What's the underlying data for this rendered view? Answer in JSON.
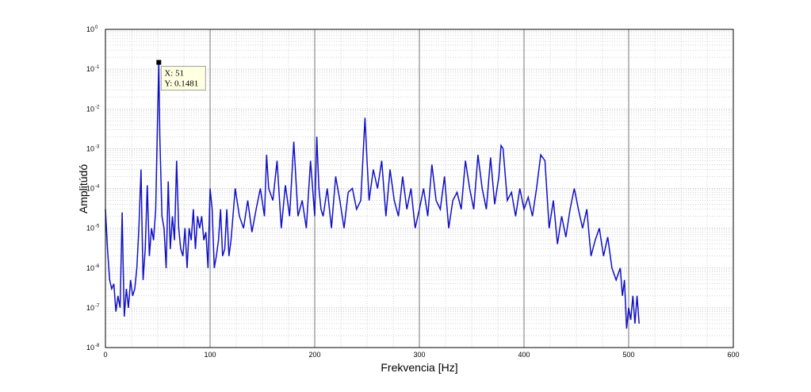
{
  "chart_data": {
    "type": "line",
    "xlabel": "Frekvencia [Hz]",
    "ylabel": "Amplitúdó",
    "xlim": [
      0,
      600
    ],
    "ylim": [
      1e-08,
      1
    ],
    "yscale": "log",
    "grid": "major and minor",
    "x_ticks": [
      "0",
      "100",
      "200",
      "300",
      "400",
      "500",
      "600"
    ],
    "y_ticks": [
      {
        "base": "10",
        "exp": "-8"
      },
      {
        "base": "10",
        "exp": "-7"
      },
      {
        "base": "10",
        "exp": "-6"
      },
      {
        "base": "10",
        "exp": "-5"
      },
      {
        "base": "10",
        "exp": "-4"
      },
      {
        "base": "10",
        "exp": "-3"
      },
      {
        "base": "10",
        "exp": "-2"
      },
      {
        "base": "10",
        "exp": "-1"
      },
      {
        "base": "10",
        "exp": "0"
      }
    ],
    "line_color": "#1010c8",
    "series": [
      {
        "x": [
          0,
          2,
          4,
          6,
          8,
          10,
          12,
          14,
          16,
          17,
          18,
          20,
          22,
          24,
          26,
          28,
          30,
          32,
          34,
          35,
          36,
          38,
          40,
          42,
          44,
          46,
          48,
          50,
          51,
          52,
          54,
          56,
          58,
          60,
          62,
          64,
          66,
          68,
          70,
          72,
          74,
          76,
          78,
          80,
          82,
          84,
          86,
          88,
          90,
          92,
          94,
          96,
          98,
          100,
          102,
          104,
          106,
          108,
          110,
          112,
          114,
          116,
          118,
          120,
          124,
          128,
          132,
          136,
          140,
          144,
          148,
          152,
          154,
          156,
          160,
          164,
          168,
          172,
          176,
          180,
          184,
          188,
          192,
          196,
          200,
          202,
          204,
          206,
          208,
          212,
          216,
          220,
          224,
          228,
          232,
          236,
          240,
          244,
          248,
          250,
          252,
          256,
          260,
          264,
          268,
          272,
          276,
          280,
          284,
          288,
          292,
          296,
          300,
          304,
          308,
          312,
          316,
          320,
          324,
          328,
          332,
          336,
          340,
          344,
          348,
          352,
          356,
          360,
          364,
          368,
          372,
          376,
          378,
          380,
          384,
          388,
          392,
          396,
          400,
          404,
          408,
          412,
          416,
          420,
          424,
          428,
          432,
          436,
          440,
          444,
          448,
          452,
          456,
          460,
          464,
          468,
          472,
          476,
          480,
          484,
          488,
          492,
          494,
          496,
          498,
          500,
          502,
          504,
          506,
          508,
          510
        ],
        "y": [
          3e-05,
          3e-06,
          5e-07,
          3e-07,
          4e-07,
          8e-08,
          2e-07,
          1e-07,
          2.5e-05,
          1e-06,
          6e-08,
          3e-07,
          1e-07,
          5e-07,
          2e-07,
          3e-07,
          1e-06,
          1e-05,
          0.0003,
          1e-05,
          5e-07,
          3e-06,
          0.00012,
          2e-06,
          1e-05,
          5e-06,
          3e-05,
          0.01,
          0.1481,
          0.002,
          2e-05,
          1e-05,
          1e-06,
          0.00015,
          3e-06,
          2e-05,
          5e-06,
          0.0005,
          1e-05,
          3e-06,
          2e-06,
          1e-05,
          1e-06,
          1e-05,
          5e-06,
          3e-05,
          3e-06,
          2e-05,
          1e-05,
          2e-05,
          5e-06,
          8e-06,
          1e-06,
          0.0001,
          3e-05,
          1e-06,
          2e-06,
          5e-06,
          3e-05,
          2e-06,
          3e-06,
          3e-05,
          2e-06,
          5e-06,
          0.0001,
          2e-05,
          1e-05,
          5e-05,
          8e-06,
          3e-05,
          0.0001,
          2e-05,
          0.0007,
          0.0001,
          5e-05,
          0.0005,
          1e-05,
          0.00012,
          2e-05,
          0.0015,
          2e-05,
          5e-05,
          1e-05,
          0.0005,
          2e-05,
          0.002,
          0.0001,
          3e-05,
          2e-05,
          0.0001,
          1e-05,
          0.0002,
          5e-05,
          1e-05,
          8e-05,
          0.0001,
          3e-05,
          5e-05,
          0.006,
          0.0005,
          5e-05,
          0.0003,
          0.0001,
          0.0005,
          2e-05,
          0.0003,
          5e-05,
          2e-05,
          0.0002,
          3e-05,
          0.0001,
          1e-05,
          3e-05,
          0.0001,
          2e-05,
          0.0004,
          5e-05,
          3e-05,
          0.0002,
          1e-05,
          5e-05,
          8e-05,
          3e-05,
          0.0005,
          0.0001,
          3e-05,
          0.0007,
          0.0001,
          3e-05,
          0.0006,
          4e-05,
          0.0002,
          0.0012,
          0.001,
          5e-05,
          8e-05,
          2e-05,
          0.0001,
          3e-05,
          6e-05,
          2e-05,
          0.0001,
          0.0007,
          0.0005,
          1e-05,
          5e-05,
          4e-06,
          2e-05,
          6e-06,
          3e-05,
          0.0001,
          3e-05,
          1e-05,
          3e-05,
          2e-06,
          5e-06,
          1e-05,
          2e-06,
          6e-06,
          1e-06,
          5e-07,
          1e-06,
          2e-07,
          5e-07,
          3e-08,
          1e-07,
          5e-08,
          2e-07,
          4e-08,
          2e-07,
          4e-08
        ]
      }
    ],
    "datatip": {
      "x": 51,
      "y": 0.1481,
      "x_text": "X: 51",
      "y_text": "Y: 0.1481"
    }
  }
}
